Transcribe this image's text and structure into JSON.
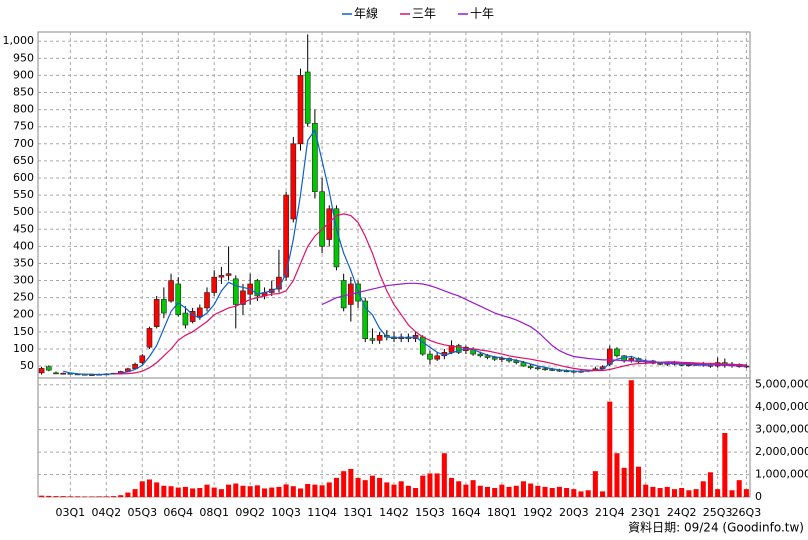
{
  "chart_data": {
    "type": "candlestick",
    "x": [
      null,
      null,
      null,
      null,
      "03Q1",
      null,
      null,
      null,
      null,
      "04Q2",
      null,
      null,
      null,
      null,
      "05Q3",
      null,
      null,
      null,
      null,
      "06Q4",
      null,
      null,
      null,
      null,
      "08Q1",
      null,
      null,
      null,
      null,
      "09Q2",
      null,
      null,
      null,
      null,
      "10Q3",
      null,
      null,
      null,
      null,
      "11Q4",
      null,
      null,
      null,
      null,
      "13Q1",
      null,
      null,
      null,
      null,
      "14Q2",
      null,
      null,
      null,
      null,
      "15Q3",
      null,
      null,
      null,
      null,
      "16Q4",
      null,
      null,
      null,
      null,
      "18Q1",
      null,
      null,
      null,
      null,
      "19Q2",
      null,
      null,
      null,
      null,
      "20Q3",
      null,
      null,
      null,
      null,
      "21Q4",
      null,
      null,
      null,
      null,
      "23Q1",
      null,
      null,
      null,
      null,
      "24Q2",
      null,
      null,
      null,
      null,
      "25Q3",
      null,
      null,
      null,
      "26Q3"
    ],
    "open": [
      30,
      48,
      30,
      28,
      29,
      27,
      26,
      25,
      25,
      26,
      27,
      29,
      34,
      42,
      60,
      105,
      165,
      245,
      240,
      290,
      205,
      180,
      195,
      220,
      265,
      310,
      315,
      305,
      230,
      260,
      300,
      255,
      265,
      275,
      310,
      480,
      700,
      910,
      760,
      560,
      420,
      510,
      300,
      230,
      290,
      240,
      130,
      125,
      140,
      135,
      130,
      135,
      130,
      135,
      85,
      70,
      80,
      90,
      110,
      95,
      100,
      85,
      80,
      75,
      70,
      72,
      65,
      60,
      50,
      45,
      42,
      40,
      38,
      36,
      35,
      33,
      35,
      38,
      42,
      55,
      100,
      80,
      65,
      72,
      62,
      65,
      58,
      55,
      58,
      56,
      52,
      54,
      55,
      52,
      50,
      60,
      52,
      55,
      48
    ],
    "high": [
      48,
      52,
      34,
      31,
      31,
      29,
      28,
      27,
      28,
      29,
      30,
      36,
      45,
      60,
      85,
      165,
      255,
      280,
      320,
      310,
      225,
      220,
      230,
      280,
      330,
      340,
      400,
      315,
      290,
      320,
      305,
      280,
      300,
      390,
      560,
      720,
      920,
      1020,
      800,
      600,
      520,
      520,
      320,
      310,
      300,
      250,
      160,
      150,
      155,
      150,
      145,
      145,
      150,
      140,
      95,
      90,
      100,
      125,
      115,
      110,
      105,
      92,
      85,
      80,
      78,
      75,
      70,
      65,
      55,
      50,
      48,
      45,
      42,
      40,
      38,
      38,
      40,
      48,
      52,
      110,
      105,
      82,
      80,
      75,
      70,
      68,
      62,
      62,
      65,
      62,
      58,
      60,
      62,
      58,
      75,
      72,
      62,
      58,
      55
    ],
    "low": [
      25,
      35,
      26,
      25,
      26,
      24,
      24,
      23,
      23,
      24,
      25,
      28,
      32,
      40,
      55,
      100,
      160,
      190,
      235,
      195,
      160,
      175,
      185,
      210,
      255,
      290,
      300,
      160,
      200,
      230,
      240,
      245,
      255,
      265,
      300,
      470,
      680,
      750,
      540,
      380,
      400,
      330,
      210,
      180,
      220,
      120,
      115,
      115,
      125,
      120,
      120,
      120,
      120,
      80,
      55,
      65,
      70,
      85,
      85,
      85,
      80,
      75,
      70,
      65,
      62,
      60,
      55,
      48,
      40,
      38,
      36,
      35,
      33,
      32,
      28,
      30,
      32,
      36,
      40,
      50,
      75,
      60,
      60,
      58,
      55,
      55,
      52,
      50,
      52,
      50,
      48,
      50,
      48,
      45,
      45,
      45,
      45,
      45,
      44
    ],
    "close": [
      43,
      38,
      28,
      29,
      27,
      26,
      25,
      25,
      26,
      27,
      29,
      34,
      42,
      55,
      80,
      160,
      245,
      205,
      300,
      200,
      170,
      210,
      220,
      265,
      310,
      315,
      320,
      230,
      270,
      290,
      255,
      265,
      275,
      310,
      550,
      700,
      900,
      760,
      560,
      400,
      510,
      340,
      220,
      290,
      240,
      130,
      125,
      140,
      135,
      130,
      135,
      130,
      140,
      85,
      70,
      80,
      90,
      110,
      90,
      105,
      85,
      80,
      75,
      70,
      72,
      65,
      60,
      50,
      45,
      42,
      40,
      38,
      36,
      35,
      33,
      35,
      38,
      42,
      48,
      100,
      80,
      65,
      72,
      62,
      65,
      58,
      55,
      58,
      56,
      52,
      54,
      55,
      52,
      50,
      60,
      52,
      55,
      48,
      50
    ],
    "up_color": "#ff0000",
    "down_color": "#00c800",
    "series": [
      {
        "name": "年線",
        "color": "#1060d0",
        "values": [
          null,
          null,
          null,
          35,
          30,
          27,
          26,
          26,
          25,
          26,
          27,
          29,
          33,
          40,
          52,
          78,
          110,
          160,
          210,
          235,
          220,
          200,
          190,
          205,
          230,
          270,
          295,
          285,
          280,
          275,
          260,
          265,
          270,
          280,
          320,
          420,
          550,
          710,
          740,
          650,
          560,
          450,
          380,
          330,
          270,
          220,
          200,
          160,
          135,
          133,
          133,
          133,
          135,
          120,
          105,
          90,
          82,
          88,
          95,
          100,
          98,
          90,
          82,
          77,
          74,
          70,
          67,
          62,
          56,
          50,
          46,
          42,
          39,
          37,
          35,
          35,
          35,
          37,
          40,
          58,
          70,
          75,
          78,
          70,
          65,
          63,
          60,
          58,
          57,
          56,
          55,
          54,
          53,
          53,
          54,
          55,
          55,
          54,
          52
        ]
      },
      {
        "name": "三年",
        "color": "#e0106a",
        "values": [
          null,
          null,
          null,
          null,
          null,
          null,
          null,
          null,
          null,
          null,
          27,
          27,
          28,
          30,
          35,
          45,
          60,
          80,
          100,
          125,
          140,
          150,
          165,
          180,
          200,
          210,
          220,
          225,
          235,
          245,
          250,
          255,
          260,
          262,
          270,
          300,
          350,
          400,
          430,
          450,
          470,
          490,
          495,
          490,
          470,
          430,
          380,
          320,
          270,
          230,
          200,
          170,
          150,
          135,
          125,
          117,
          112,
          108,
          105,
          102,
          100,
          97,
          94,
          90,
          85,
          80,
          76,
          73,
          70,
          66,
          62,
          57,
          52,
          47,
          43,
          40,
          38,
          37,
          37,
          40,
          45,
          50,
          55,
          57,
          58,
          60,
          61,
          62,
          62,
          61,
          60,
          59,
          58,
          58,
          57,
          56,
          55,
          54,
          53
        ]
      },
      {
        "name": "十年",
        "color": "#9a1ad0",
        "values": [
          null,
          null,
          null,
          null,
          null,
          null,
          null,
          null,
          null,
          null,
          null,
          null,
          null,
          null,
          null,
          null,
          null,
          null,
          null,
          null,
          null,
          null,
          null,
          null,
          null,
          null,
          null,
          null,
          null,
          null,
          null,
          null,
          null,
          null,
          null,
          null,
          null,
          null,
          null,
          230,
          240,
          250,
          255,
          260,
          265,
          270,
          275,
          280,
          285,
          288,
          290,
          292,
          292,
          290,
          285,
          278,
          270,
          262,
          255,
          245,
          235,
          225,
          215,
          205,
          198,
          192,
          185,
          175,
          165,
          150,
          130,
          110,
          95,
          85,
          78,
          75,
          72,
          70,
          68,
          68,
          67,
          66,
          65,
          64,
          63,
          62,
          61,
          60,
          59,
          58,
          57,
          56,
          55,
          54,
          53,
          52,
          51,
          50,
          49
        ]
      }
    ],
    "ylim": [
      15,
      1027
    ],
    "yticks": [
      50,
      100,
      150,
      200,
      250,
      300,
      350,
      400,
      450,
      500,
      550,
      600,
      650,
      700,
      750,
      800,
      850,
      900,
      950,
      {
        "value": 1000,
        "label": "1,000"
      }
    ],
    "grid": true,
    "volume": {
      "color": "#ff0000",
      "values": [
        60000,
        50000,
        40000,
        40000,
        30000,
        30000,
        25000,
        25000,
        30000,
        30000,
        40000,
        80000,
        200000,
        350000,
        700000,
        780000,
        650000,
        500000,
        480000,
        420000,
        450000,
        380000,
        400000,
        550000,
        420000,
        350000,
        550000,
        600000,
        500000,
        480000,
        520000,
        380000,
        420000,
        450000,
        560000,
        480000,
        380000,
        580000,
        550000,
        520000,
        650000,
        850000,
        1150000,
        1250000,
        850000,
        750000,
        950000,
        850000,
        650000,
        550000,
        700000,
        500000,
        400000,
        950000,
        1050000,
        1050000,
        1950000,
        850000,
        700000,
        550000,
        750000,
        500000,
        450000,
        400000,
        550000,
        450000,
        500000,
        700000,
        600000,
        500000,
        450000,
        400000,
        450000,
        400000,
        350000,
        250000,
        300000,
        1150000,
        250000,
        4250000,
        1950000,
        1300000,
        5200000,
        1350000,
        550000,
        450000,
        400000,
        450000,
        350000,
        400000,
        300000,
        350000,
        700000,
        1100000,
        350000,
        2850000,
        300000,
        750000,
        350000
      ],
      "ylim": [
        0,
        5300000
      ],
      "yticks": [
        0,
        {
          "value": 1000000,
          "label": "1,000,000"
        },
        {
          "value": 2000000,
          "label": "2,000,000"
        },
        {
          "value": 3000000,
          "label": "3,000,000"
        },
        {
          "value": 4000000,
          "label": "4,000,000"
        },
        {
          "value": 5000000,
          "label": "5,000,000"
        }
      ]
    },
    "footnote": "資料日期: 09/24  (Goodinfo.tw)"
  }
}
